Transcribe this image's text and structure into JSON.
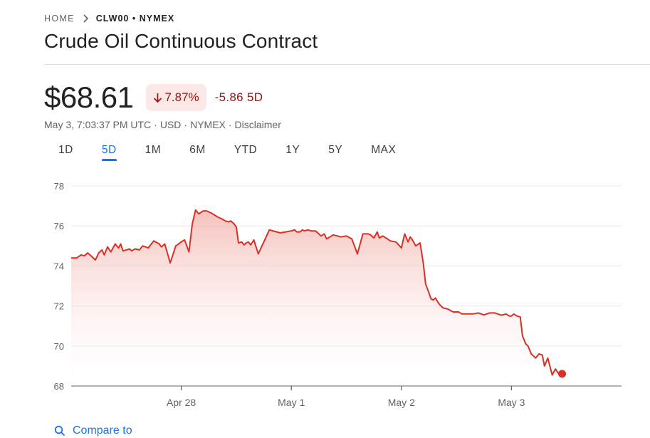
{
  "breadcrumb": {
    "home": "HOME",
    "ticker": "CLW00 • NYMEX"
  },
  "title": "Crude Oil Continuous Contract",
  "quote": {
    "price": "$68.61",
    "change_pct": "7.87%",
    "change_abs": "-5.86 5D",
    "direction": "down"
  },
  "meta": {
    "timestamp": "May 3, 7:03:37 PM UTC",
    "currency": "USD",
    "exchange": "NYMEX",
    "disclaimer": "Disclaimer",
    "separator": "·"
  },
  "tabs": [
    {
      "label": "1D",
      "active": false
    },
    {
      "label": "5D",
      "active": true
    },
    {
      "label": "1M",
      "active": false
    },
    {
      "label": "6M",
      "active": false
    },
    {
      "label": "YTD",
      "active": false
    },
    {
      "label": "1Y",
      "active": false
    },
    {
      "label": "5Y",
      "active": false
    },
    {
      "label": "MAX",
      "active": false
    }
  ],
  "compare": {
    "label": "Compare to"
  },
  "colors": {
    "line": "#d93025",
    "fill_top": "#f4b7b1",
    "badge_bg": "#fce8e6",
    "negative_text": "#a50e0e",
    "accent": "#1a73e8"
  },
  "chart_data": {
    "type": "area",
    "ylim": [
      68,
      78
    ],
    "xlim": [
      0,
      5
    ],
    "yticks": [
      78,
      76,
      74,
      72,
      70,
      68
    ],
    "xticks": [
      {
        "label": "Apr 28",
        "x": 1
      },
      {
        "label": "May 1",
        "x": 2
      },
      {
        "label": "May 2",
        "x": 3
      },
      {
        "label": "May 3",
        "x": 4
      }
    ],
    "grid": true,
    "series": [
      {
        "x": [
          0,
          0.05,
          0.09,
          0.12,
          0.15,
          0.18,
          0.22,
          0.25,
          0.28,
          0.3,
          0.33,
          0.36,
          0.4,
          0.43,
          0.45,
          0.47,
          0.5,
          0.53,
          0.55,
          0.58,
          0.62,
          0.65,
          0.7,
          0.75,
          0.8,
          0.82,
          0.85,
          0.9,
          0.95,
          1.0,
          1.03,
          1.07,
          1.1,
          1.13,
          1.16,
          1.2,
          1.23,
          1.27,
          1.3,
          1.33,
          1.37,
          1.4,
          1.43,
          1.45,
          1.48,
          1.5,
          1.52,
          1.55,
          1.57,
          1.59,
          1.61,
          1.63,
          1.66,
          1.7,
          1.8,
          1.9,
          2.0,
          2.03,
          2.05,
          2.08,
          2.1,
          2.12,
          2.15,
          2.18,
          2.22,
          2.25,
          2.27,
          2.3,
          2.32,
          2.35,
          2.38,
          2.42,
          2.45,
          2.5,
          2.55,
          2.6,
          2.65,
          2.68,
          2.7,
          2.72,
          2.75,
          2.78,
          2.8,
          2.83,
          2.86,
          2.9,
          2.95,
          3.0,
          3.03,
          3.06,
          3.08,
          3.1,
          3.13,
          3.17,
          3.2,
          3.22,
          3.25,
          3.27,
          3.29,
          3.31,
          3.33,
          3.35,
          3.38,
          3.42,
          3.47,
          3.52,
          3.55,
          3.6,
          3.65,
          3.7,
          3.75,
          3.8,
          3.85,
          3.9,
          3.92,
          3.95,
          3.98,
          4.0,
          4.02,
          4.05,
          4.08,
          4.1,
          4.13,
          4.15,
          4.18,
          4.22,
          4.25,
          4.28,
          4.3,
          4.33,
          4.37,
          4.4,
          4.43,
          4.46
        ],
        "y": [
          74.4,
          74.4,
          74.55,
          74.5,
          74.65,
          74.5,
          74.3,
          74.65,
          74.8,
          74.55,
          74.95,
          74.7,
          75.1,
          74.9,
          75.1,
          74.75,
          74.8,
          74.85,
          74.75,
          74.85,
          74.8,
          75.0,
          74.9,
          75.25,
          75.1,
          74.95,
          75.1,
          74.15,
          75.0,
          75.2,
          75.3,
          74.7,
          76.1,
          76.8,
          76.6,
          76.75,
          76.75,
          76.65,
          76.55,
          76.45,
          76.35,
          76.25,
          76.2,
          76.25,
          76.1,
          75.95,
          75.15,
          75.2,
          75.05,
          75.15,
          75.2,
          75.05,
          75.3,
          74.6,
          75.8,
          75.65,
          75.75,
          75.8,
          75.7,
          75.7,
          75.8,
          75.75,
          75.8,
          75.75,
          75.75,
          75.6,
          75.5,
          75.6,
          75.35,
          75.45,
          75.55,
          75.5,
          75.45,
          75.5,
          75.35,
          74.6,
          75.6,
          75.6,
          75.6,
          75.55,
          75.4,
          75.7,
          75.4,
          75.5,
          75.4,
          75.25,
          75.2,
          74.9,
          75.6,
          75.2,
          75.45,
          75.3,
          75.0,
          75.15,
          74.1,
          73.1,
          72.65,
          72.35,
          72.3,
          72.4,
          72.2,
          72.05,
          71.9,
          71.85,
          71.7,
          71.7,
          71.6,
          71.6,
          71.6,
          71.65,
          71.55,
          71.65,
          71.65,
          71.55,
          71.55,
          71.6,
          71.5,
          71.5,
          71.6,
          71.5,
          71.45,
          70.5,
          70.1,
          70.0,
          69.6,
          69.4,
          69.6,
          69.55,
          69.0,
          69.4,
          68.55,
          68.85,
          68.6,
          68.61
        ]
      }
    ],
    "last_point": {
      "x": 4.46,
      "y": 68.61
    }
  }
}
